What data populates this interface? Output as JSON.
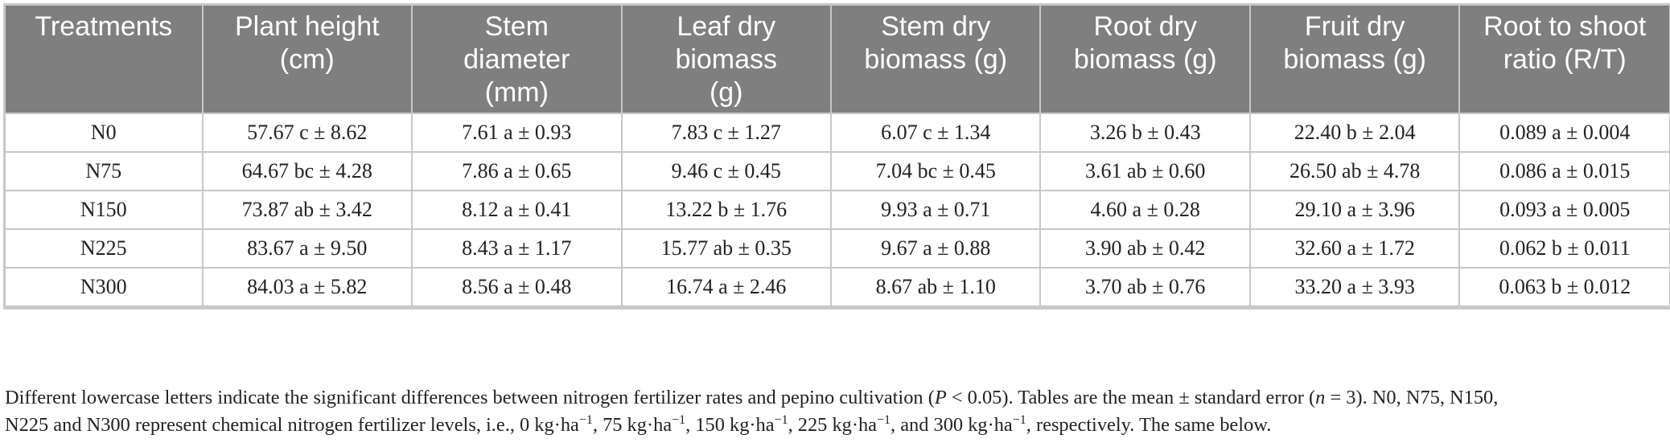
{
  "table": {
    "headers": [
      [
        "Treatments"
      ],
      [
        "Plant height",
        "(cm)"
      ],
      [
        "Stem",
        "diameter",
        "(mm)"
      ],
      [
        "Leaf dry",
        "biomass",
        "(g)"
      ],
      [
        "Stem dry",
        "biomass (g)"
      ],
      [
        "Root dry",
        "biomass (g)"
      ],
      [
        "Fruit dry",
        "biomass (g)"
      ],
      [
        "Root to shoot",
        "ratio (R/T)"
      ]
    ],
    "rows": [
      [
        "N0",
        "57.67 c ± 8.62",
        "7.61 a ± 0.93",
        "7.83 c ± 1.27",
        "6.07 c ± 1.34",
        "3.26 b ± 0.43",
        "22.40 b ± 2.04",
        "0.089 a ± 0.004"
      ],
      [
        "N75",
        "64.67 bc ± 4.28",
        "7.86 a ± 0.65",
        "9.46 c ± 0.45",
        "7.04 bc ± 0.45",
        "3.61 ab ± 0.60",
        "26.50 ab ± 4.78",
        "0.086 a ± 0.015"
      ],
      [
        "N150",
        "73.87 ab ± 3.42",
        "8.12 a ± 0.41",
        "13.22 b ± 1.76",
        "9.93 a ± 0.71",
        "4.60 a ± 0.28",
        "29.10 a ± 3.96",
        "0.093 a ± 0.005"
      ],
      [
        "N225",
        "83.67 a ± 9.50",
        "8.43 a ± 1.17",
        "15.77 ab ± 0.35",
        "9.67 a ± 0.88",
        "3.90 ab ± 0.42",
        "32.60 a ± 1.72",
        "0.062 b ± 0.011"
      ],
      [
        "N300",
        "84.03 a ± 5.82",
        "8.56 a ± 0.48",
        "16.74 a ± 2.46",
        "8.67 ab ± 1.10",
        "3.70 ab ± 0.76",
        "33.20 a ± 3.93",
        "0.063 b ± 0.012"
      ]
    ]
  },
  "footnote": {
    "part1": "Different lowercase letters indicate the significant differences between nitrogen fertilizer rates and pepino cultivation (",
    "p_symbol": "P",
    "part2": " < 0.05). Tables are the mean ± standard error (",
    "n_symbol": "n",
    "part3": " = 3). N0, N75, N150,",
    "part4": "N225 and N300 represent chemical nitrogen fertilizer levels, i.e., 0 kg·ha",
    "sup1": "−1",
    "part5": ", 75 kg·ha",
    "sup2": "−1",
    "part6": ", 150 kg·ha",
    "sup3": "−1",
    "part7": ", 225 kg·ha",
    "sup4": "−1",
    "part8": ", and 300 kg·ha",
    "sup5": "−1",
    "part9": ", respectively. The same below."
  },
  "colors": {
    "header_bg": "#7f7f7f",
    "header_text": "#ffffff",
    "grid": "#c8c8c8",
    "body_text": "#222222"
  }
}
